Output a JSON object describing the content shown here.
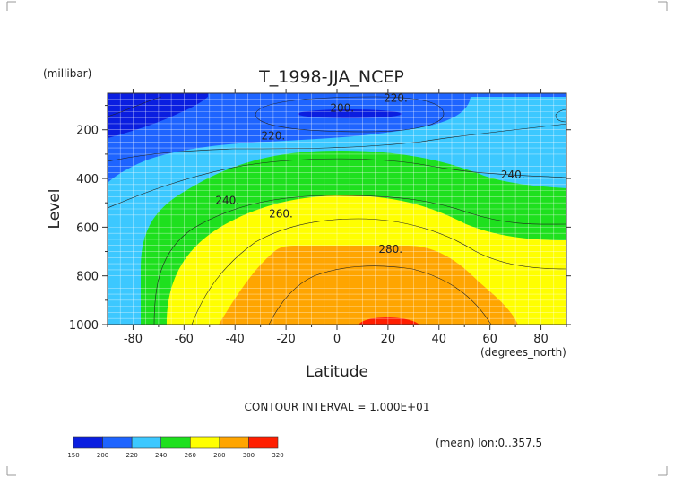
{
  "chart_data": {
    "type": "heatmap",
    "title": "T_1998-JJA_NCEP",
    "xlabel": "Latitude",
    "ylabel": "Level",
    "x_units": "(degrees_north)",
    "y_units": "(millibar)",
    "xlim": [
      -90,
      90
    ],
    "ylim": [
      1000,
      50
    ],
    "x_ticks": [
      -80,
      -60,
      -40,
      -20,
      0,
      20,
      40,
      60,
      80
    ],
    "y_ticks": [
      200,
      400,
      600,
      800,
      1000
    ],
    "contour_interval_text": "CONTOUR INTERVAL = 1.000E+01",
    "footer_note": "(mean) lon:0..357.5",
    "contour_labels": [
      {
        "text": "220.",
        "lat": 23,
        "level": 70
      },
      {
        "text": "200.",
        "lat": 2,
        "level": 110
      },
      {
        "text": "220.",
        "lat": -25,
        "level": 225
      },
      {
        "text": "240.",
        "lat": -43,
        "level": 490
      },
      {
        "text": "260.",
        "lat": -22,
        "level": 545
      },
      {
        "text": "240.",
        "lat": 69,
        "level": 385
      },
      {
        "text": "280.",
        "lat": 21,
        "level": 690
      }
    ],
    "colorbar": {
      "levels": [
        150,
        200,
        220,
        240,
        260,
        280,
        300,
        320
      ],
      "colors": [
        "#0a1ee0",
        "#1e64ff",
        "#3cc8ff",
        "#1ee01e",
        "#ffff00",
        "#ffa500",
        "#ff1e00"
      ]
    }
  }
}
